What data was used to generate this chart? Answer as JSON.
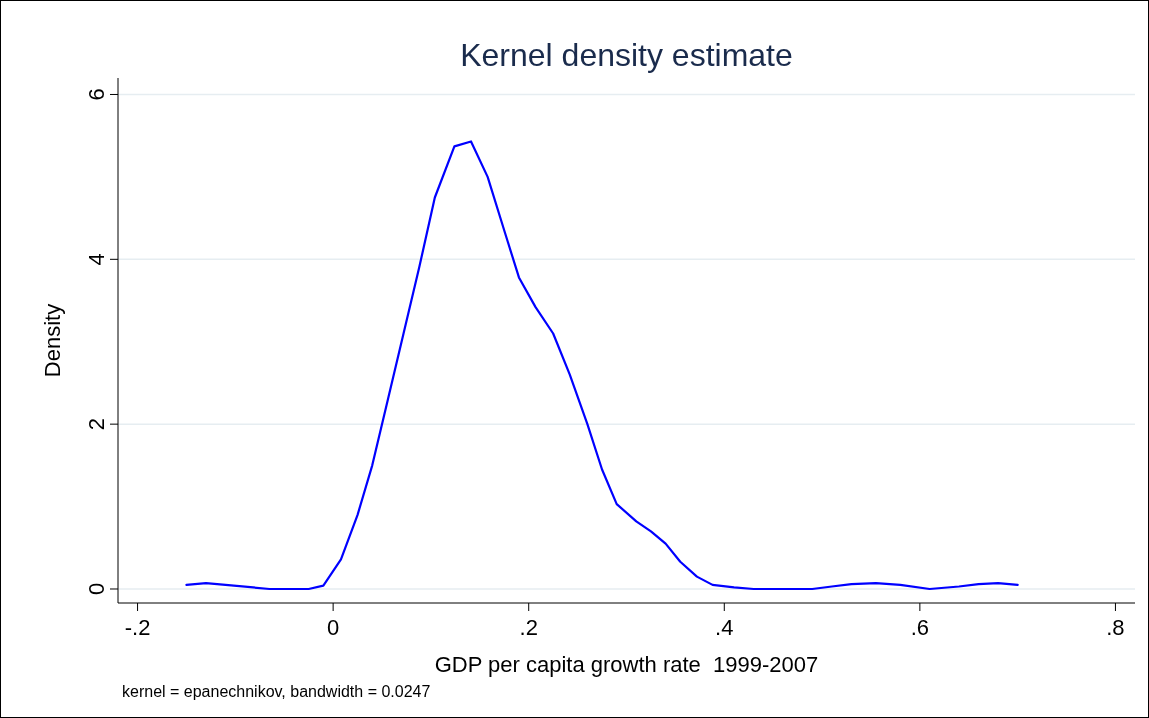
{
  "chart_data": {
    "type": "line",
    "title": "Kernel density estimate",
    "xlabel": "GDP per capita growth rate  1999-2007",
    "ylabel": "Density",
    "annotations": [
      "kernel = epanechnikov, bandwidth = 0.0247"
    ],
    "x": [
      -0.15,
      -0.13,
      -0.11,
      -0.065,
      -0.025,
      -0.01,
      0.008,
      0.025,
      0.04,
      0.056,
      0.072,
      0.088,
      0.104,
      0.124,
      0.141,
      0.158,
      0.175,
      0.19,
      0.207,
      0.225,
      0.242,
      0.26,
      0.275,
      0.29,
      0.31,
      0.325,
      0.34,
      0.355,
      0.372,
      0.388,
      0.41,
      0.43,
      0.49,
      0.51,
      0.53,
      0.555,
      0.58,
      0.61,
      0.64,
      0.66,
      0.68,
      0.7
    ],
    "series": [
      {
        "color": "#0000ff",
        "values": [
          0.05,
          0.07,
          0.05,
          0,
          0,
          0.04,
          0.36,
          0.9,
          1.5,
          2.3,
          3.1,
          3.9,
          4.75,
          5.37,
          5.43,
          5.0,
          4.35,
          3.78,
          3.42,
          3.1,
          2.6,
          2.0,
          1.45,
          1.03,
          0.82,
          0.7,
          0.55,
          0.33,
          0.15,
          0.05,
          0.02,
          0,
          0,
          0.03,
          0.06,
          0.07,
          0.05,
          0,
          0.03,
          0.06,
          0.07,
          0.05
        ]
      }
    ],
    "xlim": [
      -0.22,
      0.82
    ],
    "ylim": [
      -0.17,
      6.2
    ],
    "xticks": [
      {
        "value": -0.2,
        "label": "-.2"
      },
      0,
      {
        "value": 0.2,
        "label": ".2"
      },
      {
        "value": 0.4,
        "label": ".4"
      },
      {
        "value": 0.6,
        "label": ".6"
      },
      {
        "value": 0.8,
        "label": ".8"
      }
    ],
    "yticks": [
      0,
      2,
      4,
      6
    ],
    "grid": "y",
    "marker": "none",
    "line_style": "solid"
  }
}
